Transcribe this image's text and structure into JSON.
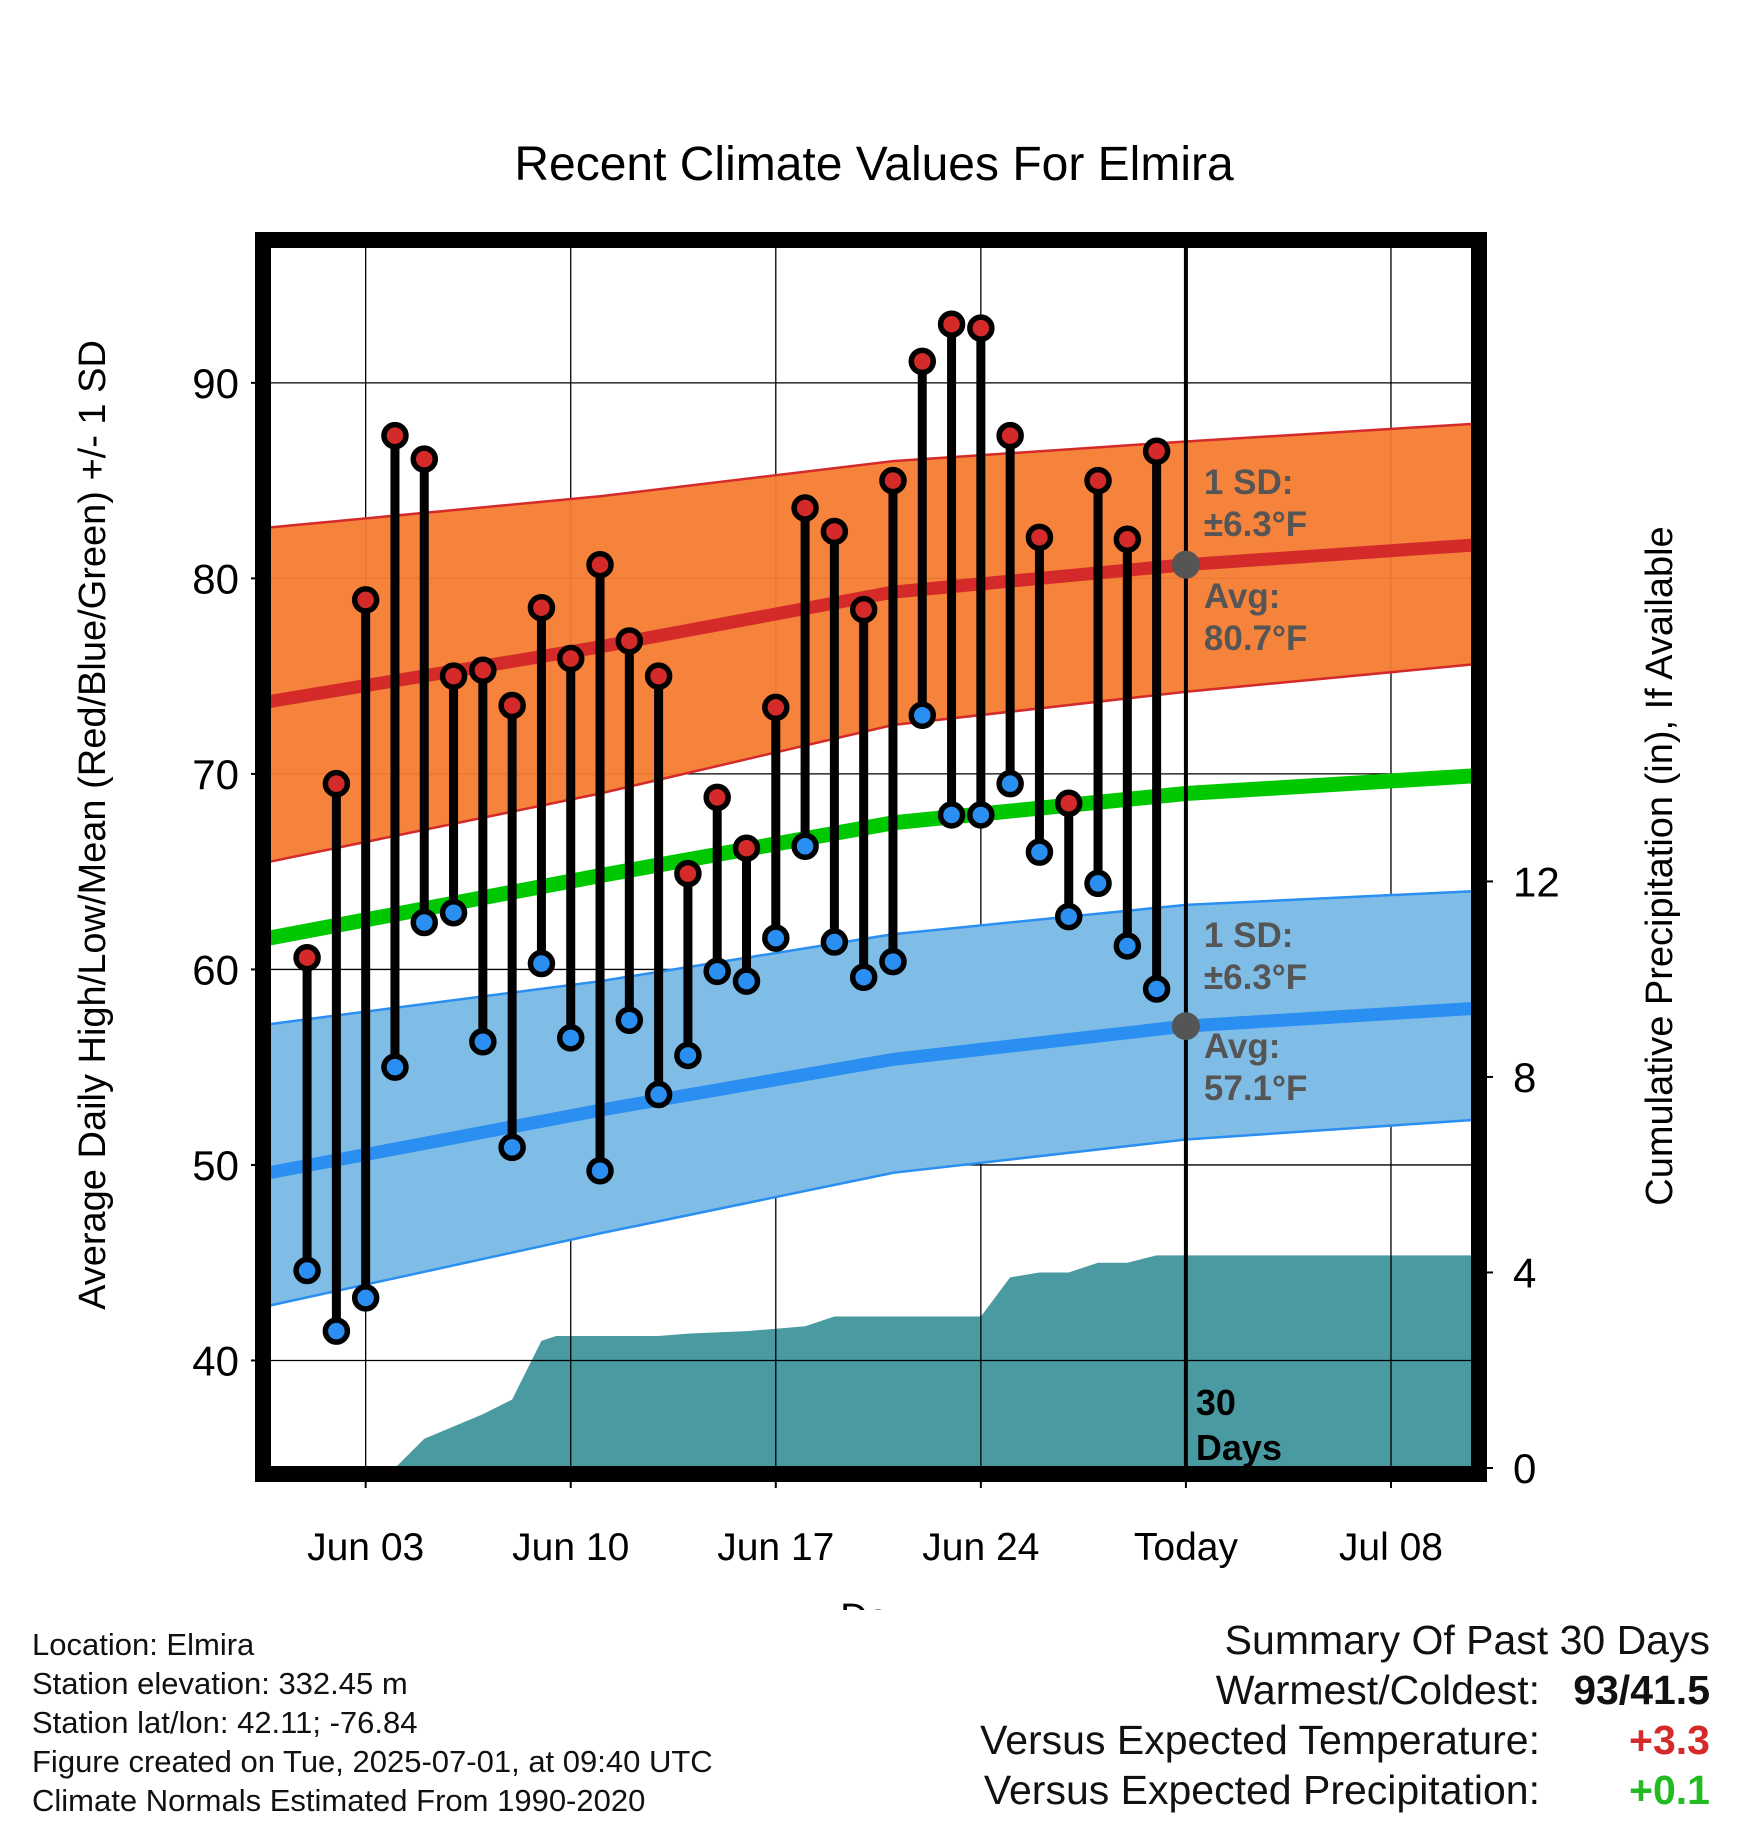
{
  "chart_data": {
    "type": "line",
    "title": "Recent Climate Values For Elmira",
    "xlabel": "Day",
    "ylabel": "Average Daily High/Low/Mean (Red/Blue/Green) +/- 1 SD",
    "ylabel_right": "Cumulative Precipitation (in), If Available",
    "x_tick_labels": [
      "Jun 03",
      "Jun 10",
      "Jun 17",
      "Jun 24",
      "Today",
      "Jul 08"
    ],
    "y_ticks": [
      40,
      50,
      60,
      70,
      80,
      90
    ],
    "y_right_ticks": [
      0,
      4,
      8,
      12
    ],
    "ylim": [
      34.5,
      97
    ],
    "y_right_lim": [
      0,
      25
    ],
    "x_range_days": [
      -31.3,
      9.8
    ],
    "today_marker": "30 Days",
    "colors": {
      "high": "#d42a2a",
      "low": "#2a8ff0",
      "mean": "#00c800",
      "high_band": "#f47c30",
      "low_band": "#7fbde6",
      "precip": "#4a9aa2"
    },
    "daily_days": [
      -30,
      -29,
      -28,
      -27,
      -26,
      -25,
      -24,
      -23,
      -22,
      -21,
      -20,
      -19,
      -18,
      -17,
      -16,
      -15,
      -14,
      -13,
      -12,
      -11,
      -10,
      -9,
      -8,
      -7,
      -6,
      -5,
      -4,
      -3,
      -2,
      -1
    ],
    "daily_high": [
      60.6,
      69.5,
      78.9,
      87.3,
      86.1,
      75.0,
      75.3,
      73.5,
      78.5,
      75.9,
      80.7,
      76.8,
      75.0,
      64.9,
      68.8,
      66.2,
      73.4,
      83.6,
      82.4,
      78.4,
      85.0,
      91.1,
      93.0,
      92.8,
      87.3,
      82.1,
      68.5,
      85.0,
      82.0,
      86.5
    ],
    "daily_low": [
      44.6,
      41.5,
      43.2,
      55.0,
      62.4,
      62.9,
      56.3,
      50.9,
      60.3,
      56.5,
      49.7,
      57.4,
      53.6,
      55.6,
      59.9,
      59.4,
      61.6,
      66.3,
      61.4,
      59.6,
      60.4,
      73.0,
      67.9,
      67.9,
      69.5,
      66.0,
      62.7,
      64.4,
      61.2,
      59.0
    ],
    "normals_x": [
      -31.3,
      -20,
      -10,
      0,
      9.8
    ],
    "normal_high_avg": [
      73.7,
      76.5,
      79.3,
      80.7,
      81.7
    ],
    "normal_high_upper": [
      82.6,
      84.2,
      86.0,
      87.0,
      87.9
    ],
    "normal_high_lower": [
      65.5,
      69.0,
      72.5,
      74.2,
      75.6
    ],
    "normal_low_avg": [
      49.6,
      52.8,
      55.4,
      57.1,
      58.0
    ],
    "normal_low_upper": [
      57.2,
      59.4,
      61.8,
      63.3,
      64.0
    ],
    "normal_low_lower": [
      42.8,
      46.5,
      49.6,
      51.3,
      52.3
    ],
    "normal_mean": [
      61.6,
      64.8,
      67.5,
      69.0,
      69.9
    ],
    "precip_x": [
      -27,
      -26,
      -24,
      -23,
      -22,
      -21.5,
      -21,
      -20,
      -18,
      -17,
      -15,
      -14,
      -13,
      -12,
      -9,
      -8,
      -7,
      -6,
      -5,
      -4,
      -3,
      -2,
      -1,
      0,
      9.8
    ],
    "precip_cum": [
      0.0,
      0.6,
      1.1,
      1.4,
      2.6,
      2.7,
      2.7,
      2.7,
      2.7,
      2.75,
      2.8,
      2.85,
      2.9,
      3.1,
      3.1,
      3.1,
      3.1,
      3.9,
      4.0,
      4.0,
      4.2,
      4.2,
      4.35,
      4.35,
      4.35
    ],
    "annotations": {
      "high_sd_label": "1 SD:",
      "high_sd_value": "±6.3°F",
      "high_avg_label": "Avg:",
      "high_avg_value": "80.7°F",
      "low_sd_label": "1 SD:",
      "low_sd_value": "±6.3°F",
      "low_avg_label": "Avg:",
      "low_avg_value": "57.1°F",
      "today_label_line1": "30",
      "today_label_line2": "Days"
    }
  },
  "footer": {
    "location": "Location: Elmira",
    "elevation": "Station elevation: 332.45 m",
    "latlon": "Station lat/lon: 42.11; -76.84",
    "created": "Figure created on Tue, 2025-07-01, at 09:40 UTC",
    "normals": "Climate Normals Estimated From 1990-2020"
  },
  "summary": {
    "title": "Summary Of Past 30 Days",
    "warmest_coldest_label": "Warmest/Coldest:",
    "warmest_coldest_value": "93/41.5",
    "temp_label": "Versus Expected Temperature:",
    "temp_value": "+3.3",
    "temp_color": "#d42a2a",
    "precip_label": "Versus Expected Precipitation:",
    "precip_value": "+0.1",
    "precip_color": "#22bb22"
  }
}
